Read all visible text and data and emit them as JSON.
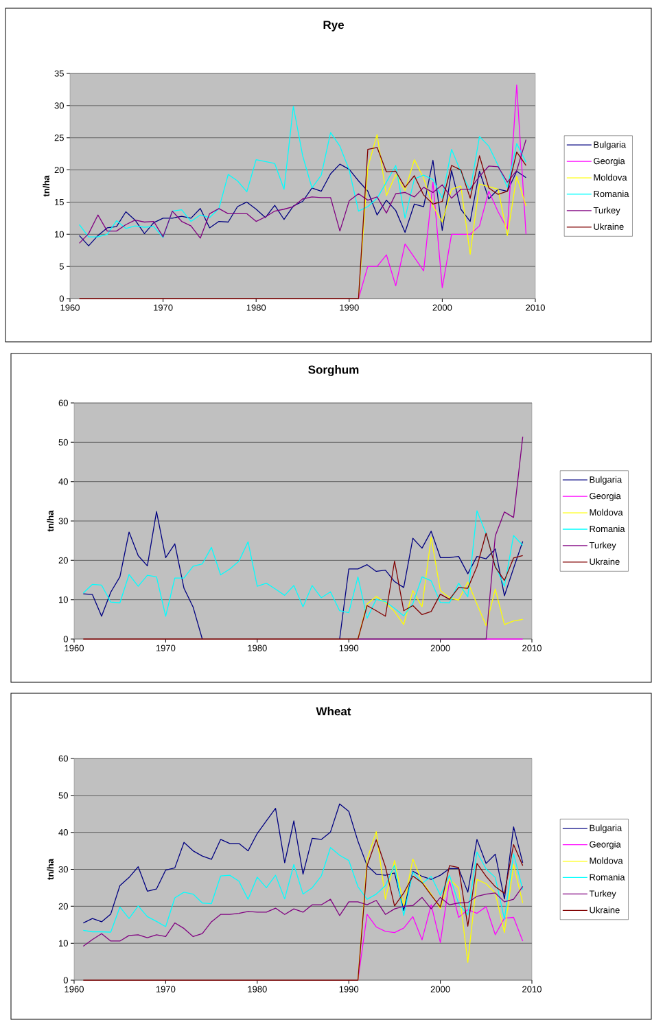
{
  "chart_data": [
    {
      "type": "line",
      "title": "Rye",
      "ylabel": "tn/ha",
      "x": [
        1961,
        1962,
        1963,
        1964,
        1965,
        1966,
        1967,
        1968,
        1969,
        1970,
        1971,
        1972,
        1973,
        1974,
        1975,
        1976,
        1977,
        1978,
        1979,
        1980,
        1981,
        1982,
        1983,
        1984,
        1985,
        1986,
        1987,
        1988,
        1989,
        1990,
        1991,
        1992,
        1993,
        1994,
        1995,
        1996,
        1997,
        1998,
        1999,
        2000,
        2001,
        2002,
        2003,
        2004,
        2005,
        2006,
        2007,
        2008,
        2009
      ],
      "xlim": [
        1960,
        2010
      ],
      "xticks": [
        1960,
        1970,
        1980,
        1990,
        2000,
        2010
      ],
      "ylim": [
        0,
        35
      ],
      "yticks": [
        0,
        5,
        10,
        15,
        20,
        25,
        30,
        35
      ],
      "grid": "y",
      "legend": "right",
      "series": [
        {
          "name": "Bulgaria",
          "color": "#000080",
          "values": [
            9.8,
            8.2,
            9.8,
            11.0,
            11.2,
            13.5,
            12.2,
            10.1,
            11.8,
            12.5,
            12.5,
            12.8,
            12.5,
            14.0,
            11.0,
            12.0,
            11.9,
            14.3,
            15.0,
            13.9,
            12.6,
            14.5,
            12.3,
            14.4,
            15.1,
            17.2,
            16.7,
            19.4,
            20.9,
            20.1,
            18.3,
            16.7,
            13.0,
            15.3,
            13.7,
            10.3,
            14.7,
            14.3,
            21.5,
            10.6,
            19.9,
            13.9,
            12.0,
            19.8,
            15.5,
            17.0,
            16.7,
            19.8,
            18.8
          ]
        },
        {
          "name": "Georgia",
          "color": "#ff00ff",
          "values": [
            null,
            null,
            null,
            null,
            null,
            null,
            null,
            null,
            null,
            null,
            null,
            null,
            null,
            null,
            null,
            null,
            null,
            null,
            null,
            null,
            null,
            null,
            null,
            null,
            null,
            null,
            null,
            null,
            null,
            null,
            0,
            5.0,
            5.0,
            6.8,
            2.0,
            8.5,
            6.4,
            4.3,
            18.1,
            1.7,
            10.0,
            10.0,
            10.0,
            11.3,
            16.7,
            13.5,
            10.8,
            33.2,
            10.0
          ]
        },
        {
          "name": "Moldova",
          "color": "#ffff00",
          "values": [
            null,
            null,
            null,
            null,
            null,
            null,
            null,
            null,
            null,
            null,
            null,
            null,
            null,
            null,
            null,
            null,
            null,
            null,
            null,
            null,
            null,
            null,
            null,
            null,
            null,
            null,
            null,
            null,
            null,
            null,
            0,
            20.4,
            25.5,
            16.0,
            19.3,
            16.8,
            21.6,
            18.7,
            14.4,
            11.9,
            17.0,
            17.5,
            6.9,
            17.8,
            17.4,
            17.0,
            9.8,
            19.0,
            14.4
          ]
        },
        {
          "name": "Romania",
          "color": "#00ffff",
          "values": [
            11.5,
            9.6,
            9.6,
            10.0,
            12.1,
            10.9,
            11.3,
            11.1,
            11.2,
            9.5,
            13.6,
            13.8,
            12.0,
            13.0,
            12.6,
            14.0,
            19.3,
            18.3,
            16.6,
            21.6,
            21.3,
            21.0,
            17.0,
            29.9,
            22.2,
            17.2,
            19.2,
            25.8,
            23.7,
            20.0,
            13.6,
            14.3,
            15.6,
            18.1,
            20.7,
            12.5,
            18.6,
            19.2,
            18.5,
            15.6,
            23.2,
            19.7,
            16.8,
            25.2,
            23.7,
            20.7,
            17.3,
            24.1,
            21.2
          ]
        },
        {
          "name": "Turkey",
          "color": "#800080",
          "values": [
            8.6,
            10.1,
            13.0,
            10.5,
            10.5,
            11.5,
            12.2,
            11.9,
            12.0,
            9.6,
            13.6,
            12.0,
            11.3,
            9.4,
            13.2,
            14.0,
            13.2,
            13.2,
            13.2,
            12.0,
            12.7,
            13.6,
            13.9,
            14.3,
            15.5,
            15.8,
            15.7,
            15.7,
            10.5,
            15.2,
            16.3,
            15.3,
            15.8,
            13.3,
            16.3,
            16.5,
            15.8,
            17.3,
            16.5,
            17.7,
            15.6,
            17.0,
            17.0,
            19.0,
            20.6,
            20.5,
            18.1,
            19.9,
            24.7
          ]
        },
        {
          "name": "Ukraine",
          "color": "#800000",
          "values": [
            0,
            0,
            0,
            0,
            0,
            0,
            0,
            0,
            0,
            0,
            0,
            0,
            0,
            0,
            0,
            0,
            0,
            0,
            0,
            0,
            0,
            0,
            0,
            0,
            0,
            0,
            0,
            0,
            0,
            0,
            0,
            23.2,
            23.5,
            19.7,
            19.8,
            17.3,
            19.1,
            16.1,
            14.7,
            15.1,
            20.7,
            20.0,
            15.6,
            22.2,
            17.2,
            16.2,
            16.7,
            22.8,
            20.7
          ]
        }
      ]
    },
    {
      "type": "line",
      "title": "Sorghum",
      "ylabel": "tn/ha",
      "x": [
        1961,
        1962,
        1963,
        1964,
        1965,
        1966,
        1967,
        1968,
        1969,
        1970,
        1971,
        1972,
        1973,
        1974,
        1975,
        1976,
        1977,
        1978,
        1979,
        1980,
        1981,
        1982,
        1983,
        1984,
        1985,
        1986,
        1987,
        1988,
        1989,
        1990,
        1991,
        1992,
        1993,
        1994,
        1995,
        1996,
        1997,
        1998,
        1999,
        2000,
        2001,
        2002,
        2003,
        2004,
        2005,
        2006,
        2007,
        2008,
        2009
      ],
      "xlim": [
        1960,
        2010
      ],
      "xticks": [
        1960,
        1970,
        1980,
        1990,
        2000,
        2010
      ],
      "ylim": [
        0,
        60
      ],
      "yticks": [
        0,
        10,
        20,
        30,
        40,
        50,
        60
      ],
      "grid": "y",
      "legend": "right",
      "series": [
        {
          "name": "Bulgaria",
          "color": "#000080",
          "values": [
            11.5,
            11.3,
            5.8,
            11.9,
            15.8,
            27.2,
            21.2,
            18.6,
            32.4,
            20.7,
            24.2,
            12.9,
            8.1,
            0,
            null,
            null,
            null,
            null,
            null,
            null,
            null,
            null,
            null,
            null,
            null,
            null,
            null,
            null,
            0,
            17.8,
            17.8,
            18.9,
            17.2,
            17.5,
            14.6,
            13.1,
            25.6,
            23.1,
            27.4,
            20.7,
            20.7,
            21.0,
            16.6,
            21.0,
            20.4,
            22.9,
            11.0,
            18.0,
            24.8
          ]
        },
        {
          "name": "Georgia",
          "color": "#ff00ff",
          "values": [
            null,
            null,
            null,
            null,
            null,
            null,
            null,
            null,
            null,
            null,
            null,
            null,
            null,
            null,
            null,
            null,
            null,
            null,
            null,
            null,
            null,
            null,
            null,
            null,
            null,
            null,
            null,
            null,
            null,
            null,
            null,
            null,
            null,
            null,
            null,
            null,
            null,
            null,
            null,
            null,
            null,
            null,
            null,
            null,
            0,
            0,
            0,
            0,
            0
          ]
        },
        {
          "name": "Moldova",
          "color": "#ffff00",
          "values": [
            null,
            null,
            null,
            null,
            null,
            null,
            null,
            null,
            null,
            null,
            null,
            null,
            null,
            null,
            null,
            null,
            null,
            null,
            null,
            null,
            null,
            null,
            null,
            null,
            null,
            null,
            null,
            null,
            null,
            null,
            0,
            8.9,
            10.8,
            9.3,
            7.0,
            3.7,
            12.3,
            8.2,
            25.9,
            12.3,
            10.5,
            9.9,
            14.5,
            8.9,
            3.4,
            12.7,
            3.7,
            4.6,
            5.0
          ]
        },
        {
          "name": "Romania",
          "color": "#00ffff",
          "values": [
            11.7,
            13.9,
            13.7,
            9.4,
            9.2,
            16.4,
            13.4,
            16.2,
            15.8,
            5.8,
            15.5,
            15.5,
            18.5,
            19.1,
            23.3,
            16.3,
            17.8,
            19.8,
            24.7,
            13.4,
            14.2,
            12.7,
            11.1,
            13.6,
            8.2,
            13.6,
            10.5,
            12.0,
            7.2,
            6.7,
            15.8,
            5.3,
            10.1,
            9.5,
            7.8,
            5.9,
            9.0,
            15.8,
            14.8,
            9.3,
            9.2,
            14.2,
            10.7,
            32.6,
            26.7,
            18.6,
            13.4,
            26.3,
            23.8
          ]
        },
        {
          "name": "Turkey",
          "color": "#800080",
          "values": [
            null,
            null,
            null,
            null,
            null,
            null,
            null,
            null,
            null,
            null,
            null,
            null,
            null,
            null,
            null,
            null,
            null,
            null,
            null,
            null,
            null,
            null,
            null,
            null,
            null,
            null,
            null,
            null,
            null,
            null,
            0,
            0,
            0,
            0,
            0,
            0,
            0,
            0,
            0,
            0,
            0,
            0,
            0,
            0,
            0,
            26.2,
            32.3,
            30.9,
            51.4
          ]
        },
        {
          "name": "Ukraine",
          "color": "#800000",
          "values": [
            0,
            0,
            0,
            0,
            0,
            0,
            0,
            0,
            0,
            0,
            0,
            0,
            0,
            0,
            0,
            0,
            0,
            0,
            0,
            0,
            0,
            0,
            0,
            0,
            0,
            0,
            0,
            0,
            0,
            0,
            0,
            8.5,
            7.2,
            5.8,
            19.8,
            7.2,
            8.5,
            6.2,
            7.0,
            11.4,
            10.1,
            13.1,
            12.9,
            18.4,
            26.9,
            18.3,
            14.9,
            20.6,
            21.2
          ]
        }
      ]
    },
    {
      "type": "line",
      "title": "Wheat",
      "ylabel": "tn/ha",
      "x": [
        1961,
        1962,
        1963,
        1964,
        1965,
        1966,
        1967,
        1968,
        1969,
        1970,
        1971,
        1972,
        1973,
        1974,
        1975,
        1976,
        1977,
        1978,
        1979,
        1980,
        1981,
        1982,
        1983,
        1984,
        1985,
        1986,
        1987,
        1988,
        1989,
        1990,
        1991,
        1992,
        1993,
        1994,
        1995,
        1996,
        1997,
        1998,
        1999,
        2000,
        2001,
        2002,
        2003,
        2004,
        2005,
        2006,
        2007,
        2008,
        2009
      ],
      "xlim": [
        1960,
        2010
      ],
      "xticks": [
        1960,
        1970,
        1980,
        1990,
        2000,
        2010
      ],
      "ylim": [
        0,
        60
      ],
      "yticks": [
        0,
        10,
        20,
        30,
        40,
        50,
        60
      ],
      "grid": "y",
      "legend": "right",
      "series": [
        {
          "name": "Bulgaria",
          "color": "#000080",
          "values": [
            15.5,
            16.7,
            15.8,
            17.9,
            25.6,
            27.8,
            30.7,
            24.1,
            24.7,
            29.8,
            30.4,
            37.3,
            35.0,
            33.6,
            32.7,
            38.1,
            37.0,
            37.0,
            35.0,
            39.7,
            43.1,
            46.5,
            31.8,
            43.1,
            28.7,
            38.4,
            38.1,
            40.1,
            47.7,
            45.7,
            37.6,
            31.0,
            28.7,
            28.4,
            29.0,
            18.9,
            29.5,
            28.1,
            27.3,
            28.4,
            30.2,
            30.2,
            23.8,
            38.1,
            31.6,
            34.1,
            22.0,
            41.5,
            31.8
          ]
        },
        {
          "name": "Georgia",
          "color": "#ff00ff",
          "values": [
            null,
            null,
            null,
            null,
            null,
            null,
            null,
            null,
            null,
            null,
            null,
            null,
            null,
            null,
            null,
            null,
            null,
            null,
            null,
            null,
            null,
            null,
            null,
            null,
            null,
            null,
            null,
            null,
            null,
            null,
            0,
            17.8,
            14.4,
            13.2,
            12.9,
            14.1,
            17.2,
            10.9,
            20.4,
            10.2,
            26.9,
            17.0,
            19.1,
            18.1,
            19.9,
            12.3,
            16.8,
            17.0,
            10.6
          ]
        },
        {
          "name": "Moldova",
          "color": "#ffff00",
          "values": [
            null,
            null,
            null,
            null,
            null,
            null,
            null,
            null,
            null,
            null,
            null,
            null,
            null,
            null,
            null,
            null,
            null,
            null,
            null,
            null,
            null,
            null,
            null,
            null,
            null,
            null,
            null,
            null,
            null,
            null,
            0,
            32.7,
            40.2,
            21.9,
            32.4,
            20.1,
            32.8,
            26.7,
            23.3,
            19.4,
            27.3,
            25.0,
            4.8,
            27.3,
            26.1,
            23.6,
            12.9,
            31.3,
            20.9
          ]
        },
        {
          "name": "Romania",
          "color": "#00ffff",
          "values": [
            13.5,
            13.1,
            13.1,
            13.0,
            19.8,
            16.7,
            20.1,
            17.2,
            15.9,
            14.5,
            22.3,
            23.8,
            23.3,
            20.9,
            20.7,
            28.2,
            28.4,
            26.8,
            21.9,
            27.9,
            25.0,
            28.4,
            22.0,
            31.3,
            23.3,
            25.0,
            28.2,
            35.9,
            33.8,
            32.4,
            25.3,
            21.9,
            23.3,
            25.6,
            31.1,
            17.5,
            29.3,
            26.2,
            28.1,
            23.0,
            28.4,
            20.7,
            17.7,
            34.7,
            30.1,
            27.8,
            16.5,
            34.2,
            24.5
          ]
        },
        {
          "name": "Turkey",
          "color": "#800080",
          "values": [
            9.2,
            11.0,
            12.6,
            10.6,
            10.6,
            12.1,
            12.3,
            11.5,
            12.3,
            11.8,
            15.5,
            14.0,
            11.8,
            12.6,
            15.8,
            17.8,
            17.8,
            18.1,
            18.6,
            18.4,
            18.4,
            19.5,
            17.8,
            19.3,
            18.4,
            20.4,
            20.4,
            21.9,
            17.5,
            21.2,
            21.2,
            20.4,
            21.6,
            17.8,
            19.3,
            20.0,
            20.2,
            22.4,
            19.3,
            22.4,
            20.4,
            20.9,
            21.0,
            22.7,
            23.3,
            23.6,
            21.2,
            21.9,
            25.4
          ]
        },
        {
          "name": "Ukraine",
          "color": "#800000",
          "values": [
            0,
            0,
            0,
            0,
            0,
            0,
            0,
            0,
            0,
            0,
            0,
            0,
            0,
            0,
            0,
            0,
            0,
            0,
            0,
            0,
            0,
            0,
            0,
            0,
            0,
            0,
            0,
            0,
            0,
            0,
            0,
            31.0,
            38.0,
            30.7,
            20.1,
            23.6,
            28.2,
            26.4,
            23.0,
            19.8,
            31.0,
            30.5,
            14.6,
            31.6,
            28.1,
            25.3,
            23.5,
            36.7,
            31.0
          ]
        }
      ]
    }
  ]
}
